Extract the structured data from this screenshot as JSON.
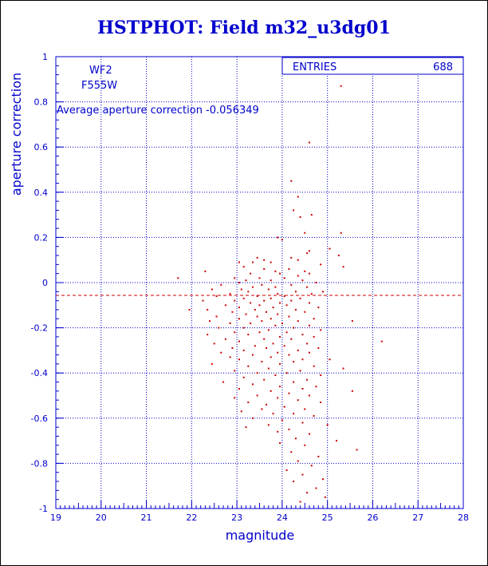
{
  "chart_data": {
    "type": "scatter",
    "title": "HSTPHOT: Field m32_u3dg01",
    "xlabel": "magnitude",
    "ylabel": "aperture correction",
    "xlim": [
      19,
      28
    ],
    "ylim": [
      -1,
      1
    ],
    "x_ticks": [
      19,
      20,
      21,
      22,
      23,
      24,
      25,
      26,
      27,
      28
    ],
    "y_ticks": [
      -1,
      -0.8,
      -0.6,
      -0.4,
      -0.2,
      0,
      0.2,
      0.4,
      0.6,
      0.8,
      1
    ],
    "grid": true,
    "colors": {
      "axes": "#0000cc",
      "points": "#cc0000",
      "reference_line": "#cc0000"
    },
    "stats": {
      "label": "ENTRIES",
      "value": "688"
    },
    "camera": "WF2",
    "filter": "F555W",
    "annotation": "Average aperture correction -0.056349",
    "reference_line": {
      "y": -0.056349,
      "style": "dashed"
    },
    "series": [
      {
        "points": [
          [
            25.3,
            0.87
          ],
          [
            24.6,
            0.62
          ],
          [
            24.2,
            0.45
          ],
          [
            24.35,
            0.38
          ],
          [
            24.25,
            0.32
          ],
          [
            24.65,
            0.3
          ],
          [
            24.4,
            0.29
          ],
          [
            25.3,
            0.22
          ],
          [
            24.5,
            0.22
          ],
          [
            23.9,
            0.2
          ],
          [
            24.0,
            0.19
          ],
          [
            25.05,
            0.15
          ],
          [
            24.6,
            0.14
          ],
          [
            24.55,
            0.13
          ],
          [
            25.25,
            0.12
          ],
          [
            24.2,
            0.11
          ],
          [
            23.45,
            0.11
          ],
          [
            23.6,
            0.1
          ],
          [
            24.35,
            0.1
          ],
          [
            23.05,
            0.09
          ],
          [
            23.35,
            0.09
          ],
          [
            23.75,
            0.09
          ],
          [
            24.85,
            0.08
          ],
          [
            25.35,
            0.07
          ],
          [
            23.15,
            0.07
          ],
          [
            23.6,
            0.06
          ],
          [
            24.15,
            0.06
          ],
          [
            24.5,
            0.05
          ],
          [
            23.85,
            0.05
          ],
          [
            22.3,
            0.05
          ],
          [
            23.3,
            0.04
          ],
          [
            23.95,
            0.04
          ],
          [
            24.6,
            0.04
          ],
          [
            24.35,
            0.03
          ],
          [
            22.95,
            0.02
          ],
          [
            23.5,
            0.02
          ],
          [
            24.05,
            0.02
          ],
          [
            21.7,
            0.02
          ],
          [
            23.2,
            0.01
          ],
          [
            23.75,
            0.01
          ],
          [
            24.45,
            0.01
          ],
          [
            24.75,
            0.0
          ],
          [
            23.05,
            0.0
          ],
          [
            23.55,
            -0.01
          ],
          [
            24.2,
            -0.01
          ],
          [
            22.65,
            -0.01
          ],
          [
            23.35,
            -0.02
          ],
          [
            23.85,
            -0.02
          ],
          [
            24.55,
            -0.02
          ],
          [
            22.45,
            -0.03
          ],
          [
            23.1,
            -0.03
          ],
          [
            23.7,
            -0.03
          ],
          [
            24.3,
            -0.04
          ],
          [
            24.9,
            -0.04
          ],
          [
            23.25,
            -0.04
          ],
          [
            23.9,
            -0.05
          ],
          [
            22.85,
            -0.05
          ],
          [
            24.65,
            -0.05
          ],
          [
            23.45,
            -0.06
          ],
          [
            24.05,
            -0.06
          ],
          [
            22.55,
            -0.06
          ],
          [
            23.15,
            -0.07
          ],
          [
            23.75,
            -0.07
          ],
          [
            24.4,
            -0.07
          ],
          [
            22.95,
            -0.08
          ],
          [
            23.6,
            -0.08
          ],
          [
            24.2,
            -0.08
          ],
          [
            22.25,
            -0.08
          ],
          [
            23.3,
            -0.09
          ],
          [
            23.95,
            -0.09
          ],
          [
            24.6,
            -0.09
          ],
          [
            22.75,
            -0.1
          ],
          [
            23.5,
            -0.1
          ],
          [
            24.1,
            -0.1
          ],
          [
            24.8,
            -0.11
          ],
          [
            23.05,
            -0.11
          ],
          [
            23.8,
            -0.11
          ],
          [
            22.35,
            -0.12
          ],
          [
            23.4,
            -0.12
          ],
          [
            24.3,
            -0.12
          ],
          [
            21.95,
            -0.12
          ],
          [
            22.9,
            -0.13
          ],
          [
            23.65,
            -0.13
          ],
          [
            24.5,
            -0.13
          ],
          [
            23.2,
            -0.14
          ],
          [
            23.9,
            -0.14
          ],
          [
            22.55,
            -0.15
          ],
          [
            24.15,
            -0.15
          ],
          [
            23.45,
            -0.15
          ],
          [
            24.7,
            -0.16
          ],
          [
            23.05,
            -0.16
          ],
          [
            23.75,
            -0.16
          ],
          [
            22.4,
            -0.17
          ],
          [
            24.35,
            -0.17
          ],
          [
            23.55,
            -0.17
          ],
          [
            25.55,
            -0.17
          ],
          [
            22.85,
            -0.18
          ],
          [
            24.0,
            -0.18
          ],
          [
            23.3,
            -0.18
          ],
          [
            24.6,
            -0.19
          ],
          [
            23.85,
            -0.19
          ],
          [
            22.6,
            -0.2
          ],
          [
            24.25,
            -0.2
          ],
          [
            23.15,
            -0.2
          ],
          [
            23.7,
            -0.21
          ],
          [
            24.85,
            -0.21
          ],
          [
            22.95,
            -0.22
          ],
          [
            24.1,
            -0.22
          ],
          [
            23.5,
            -0.22
          ],
          [
            22.35,
            -0.23
          ],
          [
            24.45,
            -0.23
          ],
          [
            23.25,
            -0.23
          ],
          [
            23.95,
            -0.24
          ],
          [
            24.7,
            -0.24
          ],
          [
            22.75,
            -0.25
          ],
          [
            23.6,
            -0.25
          ],
          [
            24.2,
            -0.25
          ],
          [
            23.05,
            -0.26
          ],
          [
            26.2,
            -0.26
          ],
          [
            23.8,
            -0.27
          ],
          [
            24.55,
            -0.27
          ],
          [
            22.5,
            -0.27
          ],
          [
            23.4,
            -0.28
          ],
          [
            24.05,
            -0.28
          ],
          [
            22.9,
            -0.29
          ],
          [
            24.8,
            -0.29
          ],
          [
            23.65,
            -0.29
          ],
          [
            24.35,
            -0.3
          ],
          [
            23.15,
            -0.3
          ],
          [
            22.65,
            -0.31
          ],
          [
            23.9,
            -0.31
          ],
          [
            24.6,
            -0.31
          ],
          [
            23.35,
            -0.32
          ],
          [
            24.15,
            -0.32
          ],
          [
            22.85,
            -0.33
          ],
          [
            23.75,
            -0.33
          ],
          [
            24.45,
            -0.34
          ],
          [
            23.05,
            -0.34
          ],
          [
            25.05,
            -0.34
          ],
          [
            23.55,
            -0.35
          ],
          [
            24.25,
            -0.35
          ],
          [
            22.45,
            -0.36
          ],
          [
            23.95,
            -0.36
          ],
          [
            24.7,
            -0.37
          ],
          [
            23.25,
            -0.37
          ],
          [
            25.35,
            -0.38
          ],
          [
            23.7,
            -0.38
          ],
          [
            24.4,
            -0.39
          ],
          [
            22.95,
            -0.39
          ],
          [
            23.45,
            -0.4
          ],
          [
            24.1,
            -0.4
          ],
          [
            24.85,
            -0.41
          ],
          [
            23.85,
            -0.41
          ],
          [
            23.15,
            -0.42
          ],
          [
            24.55,
            -0.43
          ],
          [
            23.6,
            -0.43
          ],
          [
            22.7,
            -0.44
          ],
          [
            24.25,
            -0.44
          ],
          [
            23.35,
            -0.45
          ],
          [
            23.95,
            -0.46
          ],
          [
            24.75,
            -0.46
          ],
          [
            23.05,
            -0.47
          ],
          [
            24.45,
            -0.47
          ],
          [
            23.75,
            -0.48
          ],
          [
            25.55,
            -0.48
          ],
          [
            24.15,
            -0.49
          ],
          [
            23.45,
            -0.5
          ],
          [
            24.6,
            -0.5
          ],
          [
            22.95,
            -0.51
          ],
          [
            23.9,
            -0.51
          ],
          [
            24.35,
            -0.52
          ],
          [
            23.25,
            -0.53
          ],
          [
            24.85,
            -0.53
          ],
          [
            23.65,
            -0.54
          ],
          [
            24.05,
            -0.55
          ],
          [
            23.55,
            -0.56
          ],
          [
            24.5,
            -0.56
          ],
          [
            23.1,
            -0.57
          ],
          [
            24.25,
            -0.58
          ],
          [
            23.8,
            -0.58
          ],
          [
            24.7,
            -0.59
          ],
          [
            23.35,
            -0.6
          ],
          [
            24.0,
            -0.61
          ],
          [
            24.45,
            -0.62
          ],
          [
            23.7,
            -0.63
          ],
          [
            25.0,
            -0.63
          ],
          [
            23.2,
            -0.64
          ],
          [
            24.15,
            -0.65
          ],
          [
            23.9,
            -0.66
          ],
          [
            24.6,
            -0.67
          ],
          [
            24.3,
            -0.69
          ],
          [
            25.2,
            -0.7
          ],
          [
            23.95,
            -0.71
          ],
          [
            24.5,
            -0.72
          ],
          [
            25.65,
            -0.74
          ],
          [
            24.2,
            -0.75
          ],
          [
            24.8,
            -0.77
          ],
          [
            24.35,
            -0.79
          ],
          [
            24.65,
            -0.81
          ],
          [
            24.1,
            -0.83
          ],
          [
            24.45,
            -0.85
          ],
          [
            24.9,
            -0.87
          ],
          [
            24.25,
            -0.88
          ],
          [
            24.75,
            -0.91
          ],
          [
            24.55,
            -0.93
          ],
          [
            24.95,
            -0.95
          ],
          [
            24.4,
            -0.97
          ]
        ]
      }
    ]
  }
}
